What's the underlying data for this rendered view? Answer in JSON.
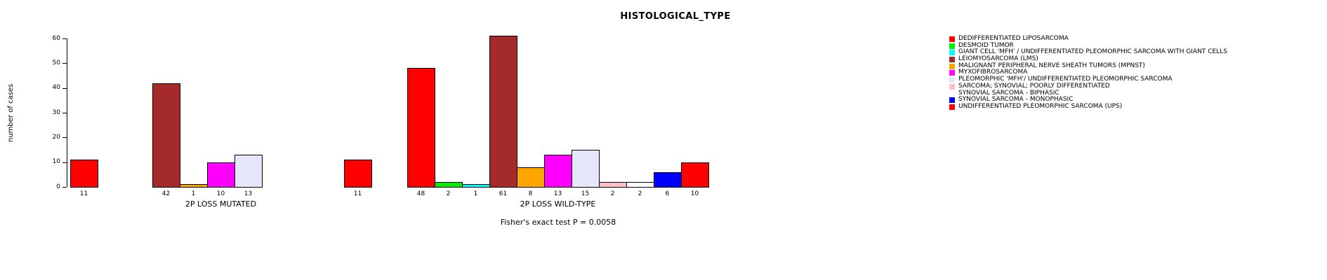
{
  "chart": {
    "title": "HISTOLOGICAL_TYPE",
    "ylabel": "number of cases",
    "annotation": "Fisher's exact test P = 0.0058"
  },
  "chart_data": {
    "type": "bar",
    "title": "HISTOLOGICAL_TYPE",
    "xlabel": "",
    "ylabel": "number of cases",
    "ylim": [
      0,
      60
    ],
    "y_ticks": [
      0,
      10,
      20,
      30,
      40,
      50,
      60
    ],
    "grid": false,
    "legend_position": "right",
    "annotation": "Fisher's exact test P = 0.0058",
    "categories": [
      "DEDIFFERENTIATED LIPOSARCOMA",
      "DESMOID TUMOR",
      "GIANT CELL 'MFH' / UNDIFFERENTIATED PLEOMORPHIC SARCOMA WITH GIANT CELLS",
      "LEIOMYOSARCOMA (LMS)",
      "MALIGNANT PERIPHERAL NERVE SHEATH TUMORS (MPNST)",
      "MYXOFIBROSARCOMA",
      "PLEOMORPHIC 'MFH'/ UNDIFFERENTIATED PLEOMORPHIC SARCOMA",
      "SARCOMA; SYNOVIAL; POORLY DIFFERENTIATED",
      "SYNOVIAL SARCOMA - BIPHASIC",
      "SYNOVIAL SARCOMA - MONOPHASIC",
      "UNDIFFERENTIATED PLEOMORPHIC SARCOMA (UPS)"
    ],
    "colors": [
      "#FF0000",
      "#00EE00",
      "#00FFFF",
      "#A52A2A",
      "#FFA500",
      "#FF00FF",
      "#E6E6FA",
      "#FFC0CB",
      "#FFFFFF",
      "#0000FF",
      "#FF0000"
    ],
    "groups": [
      {
        "label": "2P LOSS MUTATED",
        "values": [
          11,
          0,
          0,
          42,
          1,
          10,
          13,
          0,
          0,
          0,
          11
        ]
      },
      {
        "label": "2P LOSS WILD-TYPE",
        "values": [
          48,
          2,
          1,
          61,
          8,
          13,
          15,
          2,
          2,
          6,
          10
        ]
      }
    ]
  },
  "legend": {
    "items": [
      {
        "label": "DEDIFFERENTIATED LIPOSARCOMA",
        "color": "#FF0000"
      },
      {
        "label": "DESMOID TUMOR",
        "color": "#00EE00"
      },
      {
        "label": "GIANT CELL 'MFH' / UNDIFFERENTIATED PLEOMORPHIC SARCOMA WITH GIANT CELLS",
        "color": "#00FFFF"
      },
      {
        "label": "LEIOMYOSARCOMA (LMS)",
        "color": "#A52A2A"
      },
      {
        "label": "MALIGNANT PERIPHERAL NERVE SHEATH TUMORS (MPNST)",
        "color": "#FFA500"
      },
      {
        "label": "MYXOFIBROSARCOMA",
        "color": "#FF00FF"
      },
      {
        "label": "PLEOMORPHIC 'MFH'/ UNDIFFERENTIATED PLEOMORPHIC SARCOMA",
        "color": "#E6E6FA"
      },
      {
        "label": "SARCOMA; SYNOVIAL; POORLY DIFFERENTIATED",
        "color": "#FFC0CB"
      },
      {
        "label": "SYNOVIAL SARCOMA - BIPHASIC",
        "color": "#FFFFFF"
      },
      {
        "label": "SYNOVIAL SARCOMA - MONOPHASIC",
        "color": "#0000FF"
      },
      {
        "label": "UNDIFFERENTIATED PLEOMORPHIC SARCOMA (UPS)",
        "color": "#FF0000"
      }
    ]
  }
}
